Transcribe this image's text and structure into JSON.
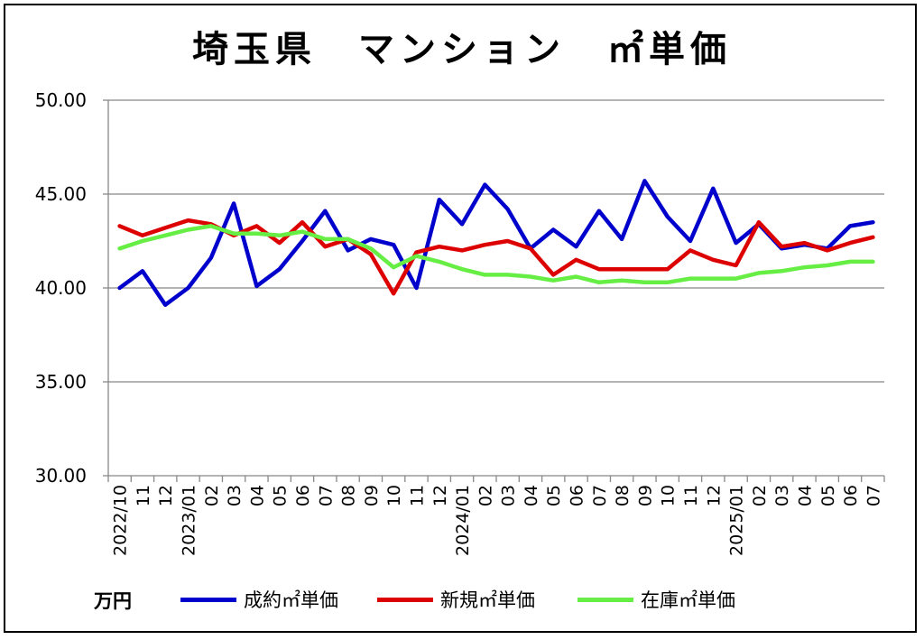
{
  "chart_data": {
    "type": "line",
    "title": "埼玉県　マンション　㎡単価",
    "unit_label": "万円",
    "ylim": [
      30,
      50
    ],
    "yticks": [
      "30.00",
      "35.00",
      "40.00",
      "45.00",
      "50.00"
    ],
    "x": [
      "2022/10",
      "11",
      "12",
      "2023/01",
      "02",
      "03",
      "04",
      "05",
      "06",
      "07",
      "08",
      "09",
      "10",
      "11",
      "12",
      "2024/01",
      "02",
      "03",
      "04",
      "05",
      "06",
      "07",
      "08",
      "09",
      "10",
      "11",
      "12",
      "2025/01",
      "02",
      "03",
      "04",
      "05",
      "06",
      "07"
    ],
    "grid": true,
    "legend_position": "bottom",
    "series": [
      {
        "name": "成約㎡単価",
        "color": "#0000CC",
        "values": [
          40.0,
          40.9,
          39.1,
          40.0,
          41.6,
          44.5,
          40.1,
          41.0,
          42.5,
          44.1,
          42.0,
          42.6,
          42.3,
          40.0,
          44.7,
          43.4,
          45.5,
          44.2,
          42.1,
          43.1,
          42.2,
          44.1,
          42.6,
          45.7,
          43.8,
          42.5,
          45.3,
          42.4,
          43.4,
          42.1,
          42.3,
          42.1,
          43.3,
          43.5
        ]
      },
      {
        "name": "新規㎡単価",
        "color": "#DD0000",
        "values": [
          43.3,
          42.8,
          43.2,
          43.6,
          43.4,
          42.8,
          43.3,
          42.4,
          43.5,
          42.2,
          42.6,
          41.8,
          39.7,
          41.9,
          42.2,
          42.0,
          42.3,
          42.5,
          42.1,
          40.7,
          41.5,
          41.0,
          41.0,
          41.0,
          41.0,
          42.0,
          41.5,
          41.2,
          43.5,
          42.2,
          42.4,
          42.0,
          42.4,
          42.7
        ]
      },
      {
        "name": "在庫㎡単価",
        "color": "#66EE44",
        "values": [
          42.1,
          42.5,
          42.8,
          43.1,
          43.3,
          42.9,
          42.9,
          42.8,
          43.0,
          42.6,
          42.6,
          42.1,
          41.1,
          41.7,
          41.4,
          41.0,
          40.7,
          40.7,
          40.6,
          40.4,
          40.6,
          40.3,
          40.4,
          40.3,
          40.3,
          40.5,
          40.5,
          40.5,
          40.8,
          40.9,
          41.1,
          41.2,
          41.4,
          41.4
        ]
      }
    ]
  }
}
